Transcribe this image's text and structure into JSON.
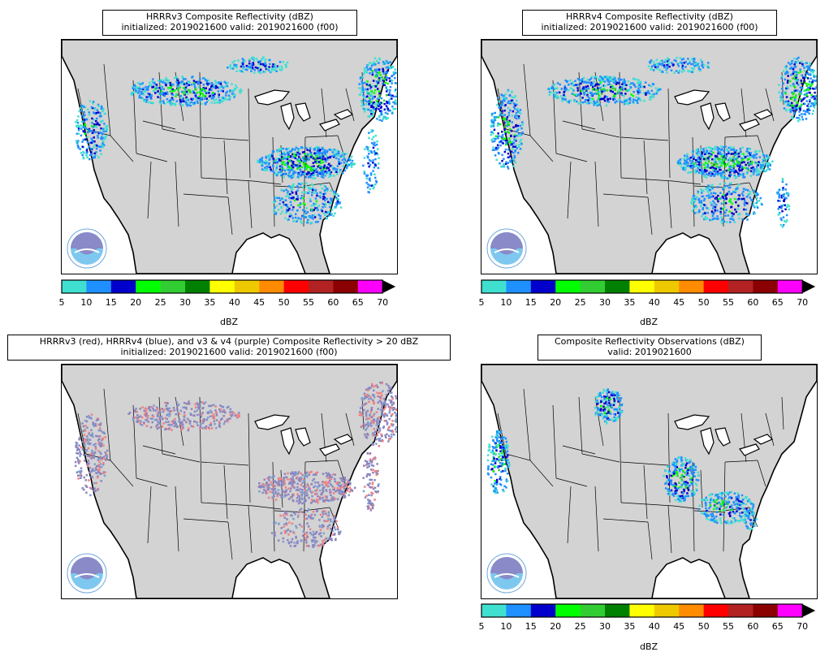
{
  "panels": [
    {
      "id": "hrrrv3",
      "title_line1": "HRRRv3 Composite Reflectivity (dBZ)",
      "title_line2": "initialized: 2019021600 valid: 2019021600 (f00)",
      "palette": "reflectivity",
      "has_colorbar": true
    },
    {
      "id": "hrrrv4",
      "title_line1": "HRRRv4 Composite Reflectivity (dBZ)",
      "title_line2": "initialized: 2019021600 valid: 2019021600 (f00)",
      "palette": "reflectivity",
      "has_colorbar": true
    },
    {
      "id": "difference",
      "title_line1": "HRRRv3 (red), HRRRv4 (blue), and v3 & v4 (purple) Composite Reflectivity > 20 dBZ",
      "title_line2": "initialized: 2019021600 valid: 2019021600 (f00)",
      "palette": "overlap",
      "has_colorbar": false
    },
    {
      "id": "observations",
      "title_line1": "Composite Reflectivity Observations (dBZ)",
      "title_line2": "valid: 2019021600",
      "palette": "reflectivity",
      "has_colorbar": true
    }
  ],
  "colorbar": {
    "label": "dBZ",
    "ticks": [
      "5",
      "10",
      "15",
      "20",
      "25",
      "30",
      "35",
      "40",
      "45",
      "50",
      "55",
      "60",
      "65",
      "70"
    ],
    "colors": [
      "#40e0d0",
      "#1e90ff",
      "#0000cd",
      "#00ff00",
      "#32cd32",
      "#008000",
      "#ffff00",
      "#eec900",
      "#ff8c00",
      "#ff0000",
      "#b22222",
      "#8b0000",
      "#ff00ff"
    ],
    "extend_color": "#000000"
  },
  "colors": {
    "land": "#d3d3d3",
    "water": "#ffffff",
    "border": "#000000",
    "v3_only": "#f08080",
    "v4_only": "#7b9fd4",
    "both": "#8a86c0"
  },
  "logo_icon": "noaa-logo-icon"
}
